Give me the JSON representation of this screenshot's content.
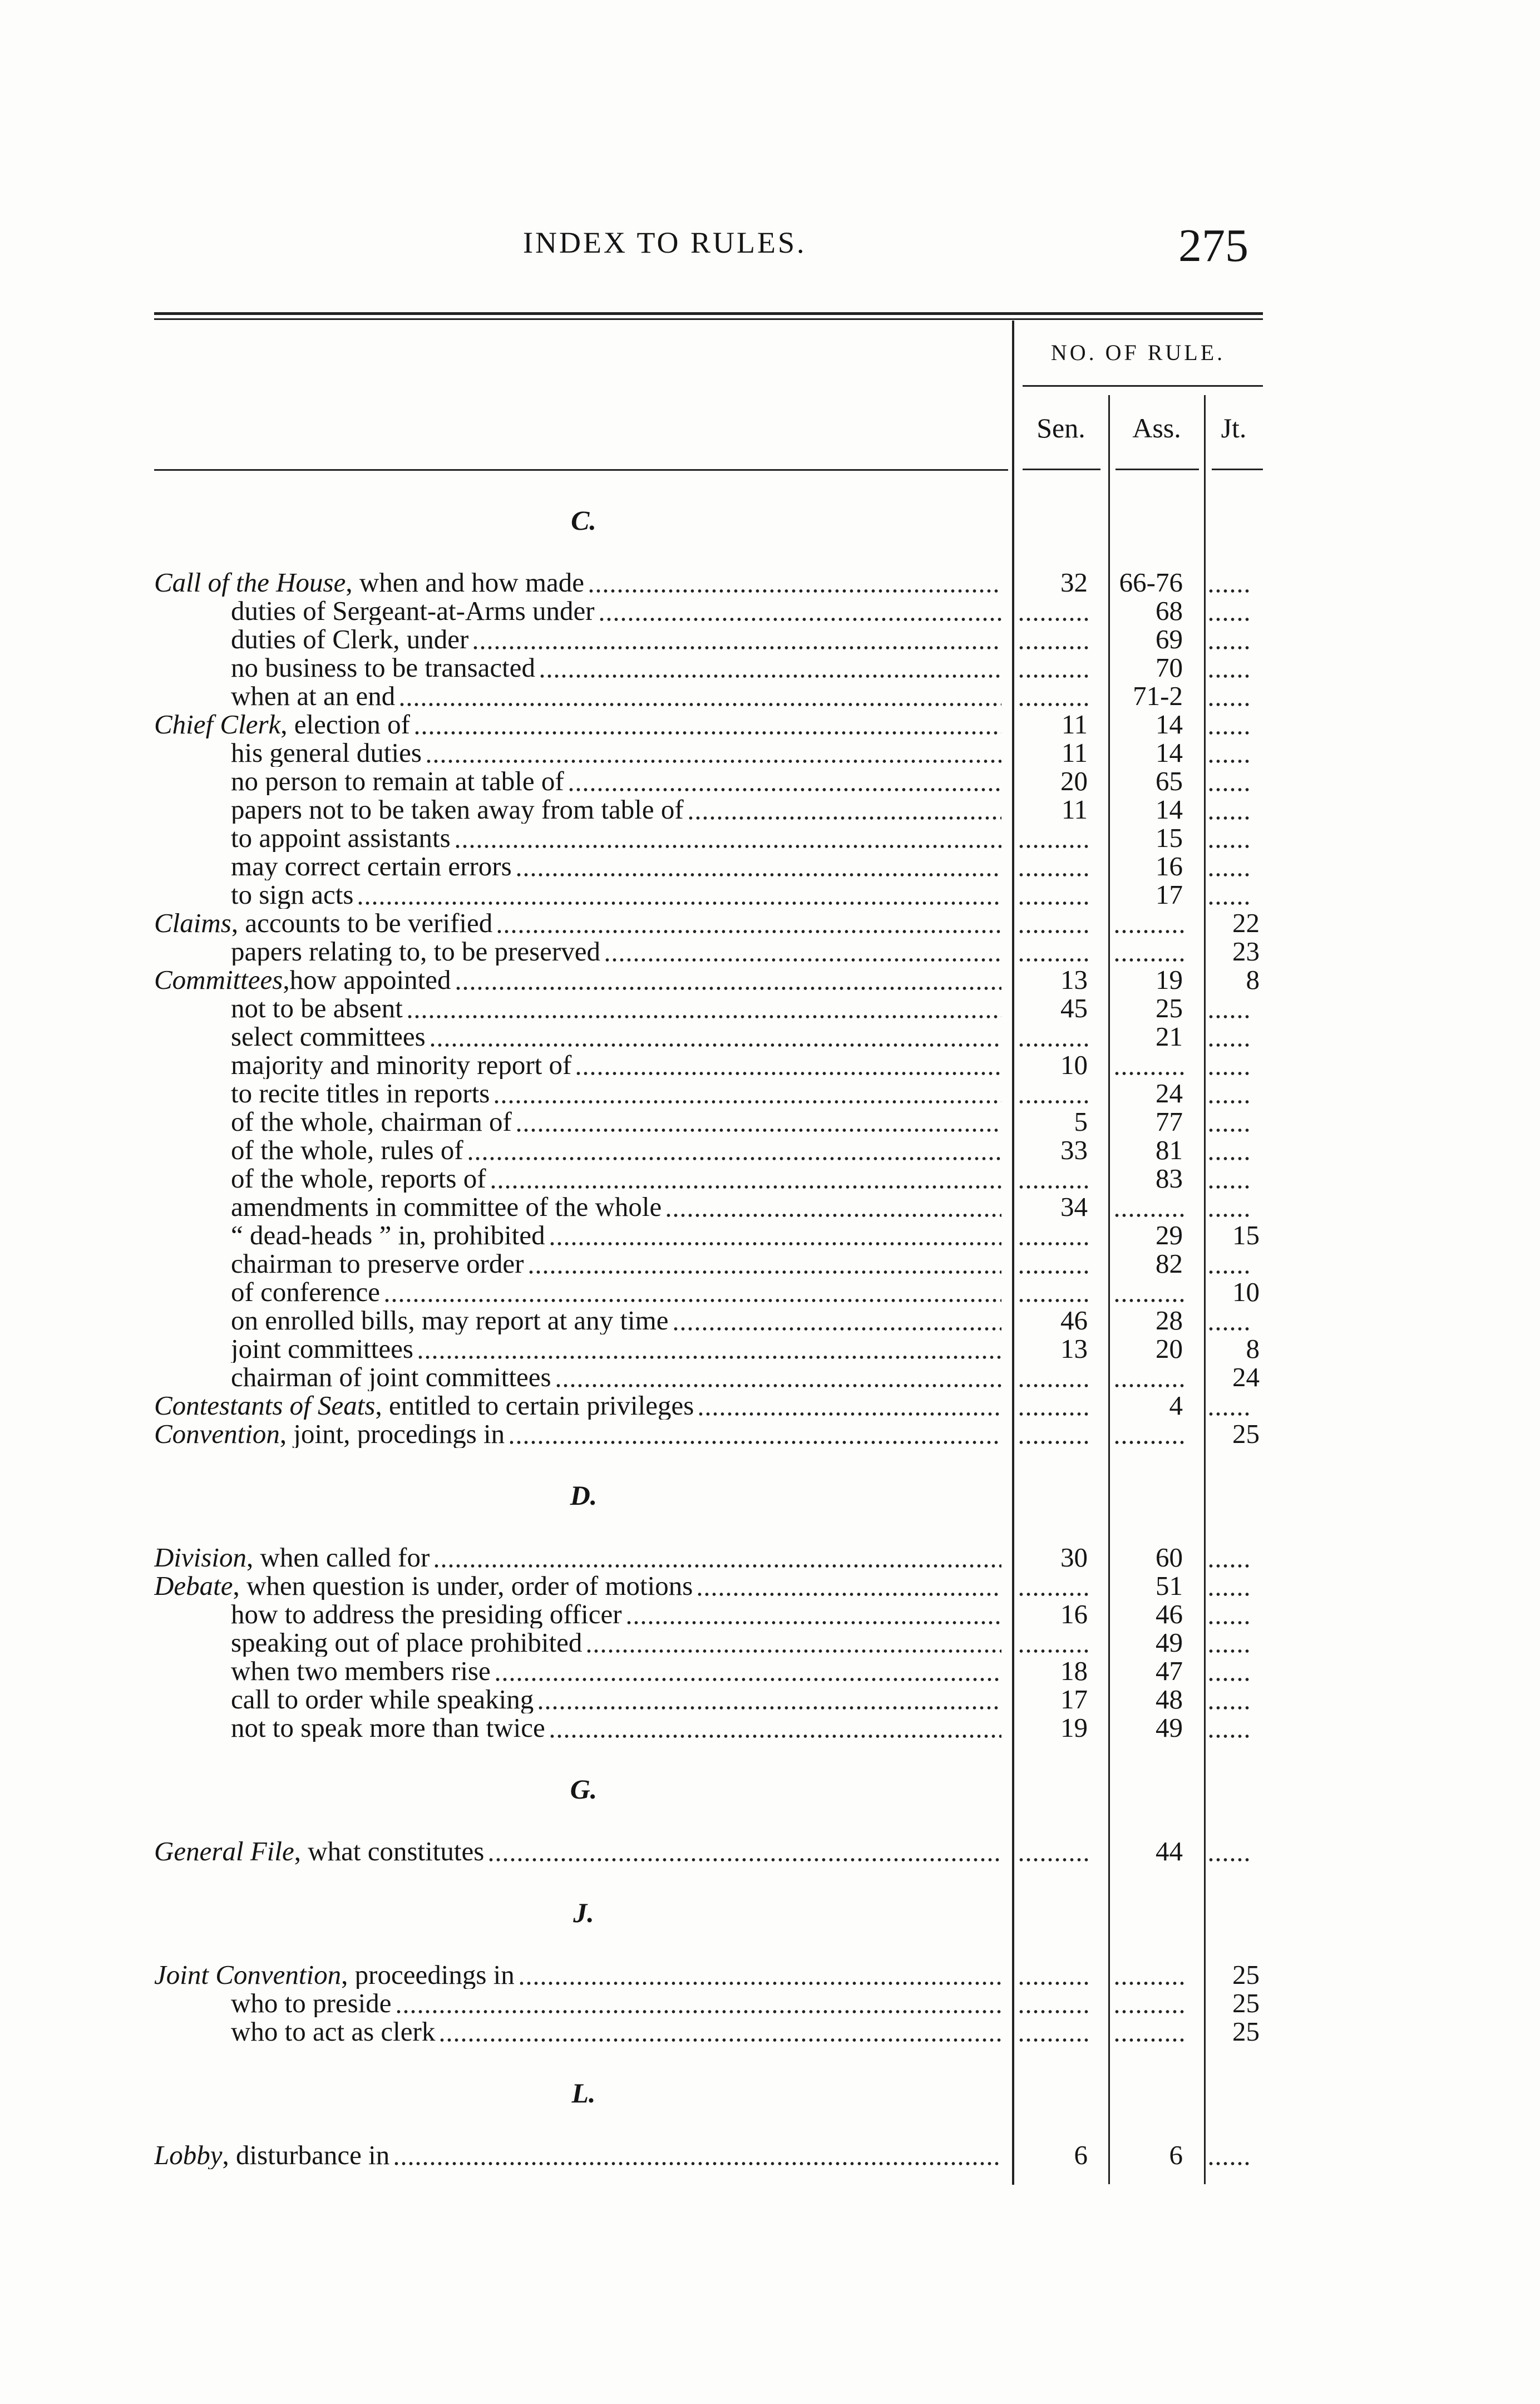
{
  "header": {
    "title": "INDEX TO RULES.",
    "page_number": "275"
  },
  "columns": {
    "group_label": "NO. OF RULE.",
    "sen": "Sen.",
    "ass": "Ass.",
    "jt": "Jt."
  },
  "sections": [
    {
      "letter": "C.",
      "entries": [
        {
          "head": "Call of the House",
          "text": ", when and how made",
          "sen": "32",
          "ass": "66-76",
          "jt": ""
        },
        {
          "sub": true,
          "text": "duties of Sergeant-at-Arms under",
          "sen": "",
          "ass": "68",
          "jt": ""
        },
        {
          "sub": true,
          "text": "duties of Clerk, under",
          "sen": "",
          "ass": "69",
          "jt": ""
        },
        {
          "sub": true,
          "text": "no business to be transacted",
          "sen": "",
          "ass": "70",
          "jt": ""
        },
        {
          "sub": true,
          "text": "when at an end",
          "sen": "",
          "ass": "71-2",
          "jt": ""
        },
        {
          "head": "Chief Clerk",
          "text": ", election of",
          "sen": "11",
          "ass": "14",
          "jt": ""
        },
        {
          "sub": true,
          "text": "his general duties",
          "sen": "11",
          "ass": "14",
          "jt": ""
        },
        {
          "sub": true,
          "text": "no person to remain at table of",
          "sen": "20",
          "ass": "65",
          "jt": ""
        },
        {
          "sub": true,
          "text": "papers not to be taken away from table of",
          "sen": "11",
          "ass": "14",
          "jt": ""
        },
        {
          "sub": true,
          "text": "to appoint assistants",
          "sen": "",
          "ass": "15",
          "jt": ""
        },
        {
          "sub": true,
          "text": "may correct certain errors",
          "sen": "",
          "ass": "16",
          "jt": ""
        },
        {
          "sub": true,
          "text": "to sign acts",
          "sen": "",
          "ass": "17",
          "jt": ""
        },
        {
          "head": "Claims",
          "text": ", accounts to be verified",
          "sen": "",
          "ass": "",
          "jt": "22"
        },
        {
          "sub": true,
          "text": "papers relating to, to be preserved",
          "sen": "",
          "ass": "",
          "jt": "23"
        },
        {
          "head": "Committees",
          "text": ",how appointed",
          "sen": "13",
          "ass": "19",
          "jt": "8"
        },
        {
          "sub": true,
          "text": "not to be absent",
          "sen": "45",
          "ass": "25",
          "jt": ""
        },
        {
          "sub": true,
          "text": "select committees",
          "sen": "",
          "ass": "21",
          "jt": ""
        },
        {
          "sub": true,
          "text": "majority and minority report of",
          "sen": "10",
          "ass": "",
          "jt": ""
        },
        {
          "sub": true,
          "text": "to recite titles in reports",
          "sen": "",
          "ass": "24",
          "jt": ""
        },
        {
          "sub": true,
          "text": "of the whole, chairman of",
          "sen": "5",
          "ass": "77",
          "jt": ""
        },
        {
          "sub": true,
          "text": "of the whole, rules of",
          "sen": "33",
          "ass": "81",
          "jt": ""
        },
        {
          "sub": true,
          "text": "of the whole, reports of",
          "sen": "",
          "ass": "83",
          "jt": ""
        },
        {
          "sub": true,
          "text": "amendments in committee of the whole",
          "sen": "34",
          "ass": "",
          "jt": ""
        },
        {
          "sub": true,
          "text": "“ dead-heads ” in, prohibited",
          "sen": "",
          "ass": "29",
          "jt": "15"
        },
        {
          "sub": true,
          "text": "chairman to preserve order",
          "sen": "",
          "ass": "82",
          "jt": ""
        },
        {
          "sub": true,
          "text": "of conference",
          "sen": "",
          "ass": "",
          "jt": "10"
        },
        {
          "sub": true,
          "text": "on enrolled bills, may report at any time",
          "sen": "46",
          "ass": "28",
          "jt": ""
        },
        {
          "sub": true,
          "text": "joint committees",
          "sen": "13",
          "ass": "20",
          "jt": "8"
        },
        {
          "sub": true,
          "text": "chairman of joint committees",
          "sen": "",
          "ass": "",
          "jt": "24"
        },
        {
          "head": "Contestants of Seats",
          "text": ", entitled to certain privileges",
          "sen": "",
          "ass": "4",
          "jt": ""
        },
        {
          "head": "Convention",
          "text": ", joint, procedings in",
          "sen": "",
          "ass": "",
          "jt": "25"
        }
      ]
    },
    {
      "letter": "D.",
      "entries": [
        {
          "head": "Division",
          "text": ", when called for",
          "sen": "30",
          "ass": "60",
          "jt": ""
        },
        {
          "head": "Debate",
          "text": ", when question is under, order of motions",
          "sen": "",
          "ass": "51",
          "jt": ""
        },
        {
          "sub": true,
          "text": "how to address the presiding officer",
          "sen": "16",
          "ass": "46",
          "jt": ""
        },
        {
          "sub": true,
          "text": "speaking out of place prohibited",
          "sen": "",
          "ass": "49",
          "jt": ""
        },
        {
          "sub": true,
          "text": "when two members rise",
          "sen": "18",
          "ass": "47",
          "jt": ""
        },
        {
          "sub": true,
          "text": "call to order while speaking",
          "sen": "17",
          "ass": "48",
          "jt": ""
        },
        {
          "sub": true,
          "text": "not to speak more than twice",
          "sen": "19",
          "ass": "49",
          "jt": ""
        }
      ]
    },
    {
      "letter": "G.",
      "entries": [
        {
          "head": "General File",
          "text": ", what constitutes",
          "sen": "",
          "ass": "44",
          "jt": ""
        }
      ]
    },
    {
      "letter": "J.",
      "entries": [
        {
          "head": "Joint Convention",
          "text": ", proceedings in",
          "sen": "",
          "ass": "",
          "jt": "25"
        },
        {
          "sub": true,
          "text": "who to preside",
          "sen": "",
          "ass": "",
          "jt": "25"
        },
        {
          "sub": true,
          "text": "who to act as clerk",
          "sen": "",
          "ass": "",
          "jt": "25"
        }
      ]
    },
    {
      "letter": "L.",
      "entries": [
        {
          "head": "Lobby",
          "text": ", disturbance in",
          "sen": "6",
          "ass": "6",
          "jt": ""
        }
      ]
    }
  ]
}
